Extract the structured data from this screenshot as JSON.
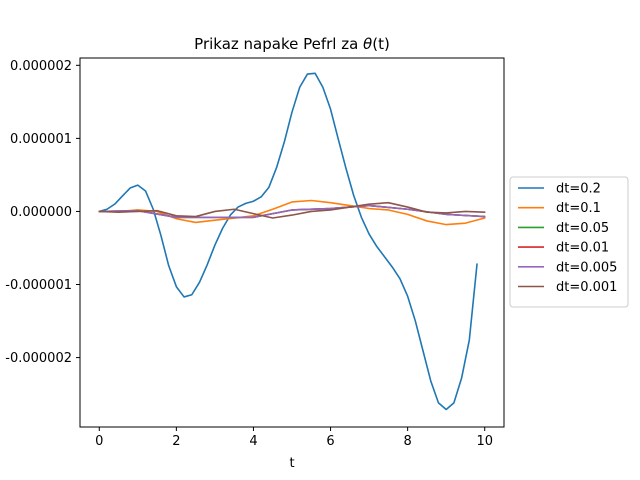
{
  "chart_data": {
    "type": "line",
    "title_prefix": "Prikaz napake Pefrl za ",
    "title_math": "θ",
    "title_suffix": "(t)",
    "xlabel": "t",
    "ylabel": "",
    "xlim": [
      -0.5,
      10.5
    ],
    "ylim": [
      -2.95e-06,
      2.1e-06
    ],
    "x_ticks": [
      0,
      2,
      4,
      6,
      8,
      10
    ],
    "x_tick_labels": [
      "0",
      "2",
      "4",
      "6",
      "8",
      "10"
    ],
    "y_ticks": [
      2e-06,
      1e-06,
      0.0,
      -1e-06,
      -2e-06
    ],
    "y_tick_labels": [
      "0.000002",
      "0.000001",
      "0.000000",
      "-0.000001",
      "-0.000002"
    ],
    "grid": false,
    "legend_placement": "center-right-outside",
    "series": [
      {
        "name": "dt=0.2",
        "color": "#1f77b4",
        "x": [
          0,
          0.2,
          0.4,
          0.6,
          0.8,
          1.0,
          1.2,
          1.4,
          1.6,
          1.8,
          2.0,
          2.2,
          2.4,
          2.6,
          2.8,
          3.0,
          3.2,
          3.4,
          3.6,
          3.8,
          4.0,
          4.2,
          4.4,
          4.6,
          4.8,
          5.0,
          5.2,
          5.4,
          5.6,
          5.8,
          6.0,
          6.2,
          6.4,
          6.6,
          6.8,
          7.0,
          7.2,
          7.4,
          7.6,
          7.8,
          8.0,
          8.2,
          8.4,
          8.6,
          8.8,
          9.0,
          9.2,
          9.4,
          9.6,
          9.8
        ],
        "y": [
          0.0,
          3e-08,
          1e-07,
          2.1e-07,
          3.2e-07,
          3.6e-07,
          2.8e-07,
          3e-08,
          -3.3e-07,
          -7.4e-07,
          -1.03e-06,
          -1.17e-06,
          -1.14e-06,
          -9.7e-07,
          -7.3e-07,
          -4.6e-07,
          -2.3e-07,
          -5e-08,
          6e-08,
          1.1e-07,
          1.4e-07,
          2e-07,
          3.3e-07,
          6e-07,
          9.5e-07,
          1.36e-06,
          1.7e-06,
          1.88e-06,
          1.89e-06,
          1.7e-06,
          1.4e-06,
          9.9e-07,
          5.9e-07,
          2.2e-07,
          -8e-08,
          -3.1e-07,
          -4.8e-07,
          -6.2e-07,
          -7.6e-07,
          -9.2e-07,
          -1.16e-06,
          -1.5e-06,
          -1.91e-06,
          -2.32e-06,
          -2.62e-06,
          -2.71e-06,
          -2.62e-06,
          -2.28e-06,
          -1.76e-06,
          -7.2e-07
        ]
      },
      {
        "name": "dt=0.1",
        "color": "#ff7f0e",
        "x": [
          0,
          0.5,
          1.0,
          1.5,
          2.0,
          2.5,
          3.0,
          3.5,
          4.0,
          4.5,
          5.0,
          5.5,
          6.0,
          6.5,
          7.0,
          7.5,
          8.0,
          8.5,
          9.0,
          9.5,
          10.0
        ],
        "y": [
          0.0,
          0.0,
          2e-08,
          0.0,
          -1e-07,
          -1.5e-07,
          -1.2e-07,
          -9e-08,
          -6e-08,
          3e-08,
          1.3e-07,
          1.5e-07,
          1.2e-07,
          8e-08,
          4e-08,
          2e-08,
          -4e-08,
          -1.3e-07,
          -1.8e-07,
          -1.6e-07,
          -9e-08
        ]
      },
      {
        "name": "dt=0.05",
        "color": "#2ca02c",
        "x": [
          0,
          1.0,
          2.0,
          3.0,
          4.0,
          5.0,
          6.0,
          7.0,
          8.0,
          9.0,
          10.0
        ],
        "y": [
          0.0,
          1e-08,
          -8e-08,
          -8e-08,
          -8e-08,
          2e-08,
          4e-08,
          8e-08,
          3e-08,
          -4e-08,
          -7e-08
        ]
      },
      {
        "name": "dt=0.01",
        "color": "#d62728",
        "x": [
          0,
          1.0,
          2.0,
          3.0,
          4.0,
          5.0,
          6.0,
          7.0,
          8.0,
          9.0,
          10.0
        ],
        "y": [
          0.0,
          1e-08,
          -8e-08,
          -8e-08,
          -8e-08,
          2e-08,
          4e-08,
          8e-08,
          3e-08,
          -4e-08,
          -7e-08
        ]
      },
      {
        "name": "dt=0.005",
        "color": "#9467bd",
        "x": [
          0,
          1.0,
          2.0,
          3.0,
          4.0,
          5.0,
          6.0,
          7.0,
          8.0,
          9.0,
          10.0
        ],
        "y": [
          0.0,
          1e-08,
          -8e-08,
          -8e-08,
          -8e-08,
          2e-08,
          4e-08,
          8e-08,
          3e-08,
          -4e-08,
          -7e-08
        ]
      },
      {
        "name": "dt=0.001",
        "color": "#8c564b",
        "x": [
          0,
          0.5,
          1.0,
          1.5,
          2.0,
          2.5,
          3.0,
          3.5,
          4.0,
          4.5,
          5.0,
          5.5,
          6.0,
          6.5,
          7.0,
          7.5,
          8.0,
          8.5,
          9.0,
          9.5,
          10.0
        ],
        "y": [
          0.0,
          -1e-08,
          0.0,
          1e-08,
          -6e-08,
          -7e-08,
          0.0,
          3e-08,
          -3e-08,
          -9e-08,
          -5e-08,
          0.0,
          2e-08,
          6e-08,
          1e-07,
          1.2e-07,
          6e-08,
          -1e-08,
          -2e-08,
          0.0,
          -1e-08
        ]
      }
    ]
  }
}
